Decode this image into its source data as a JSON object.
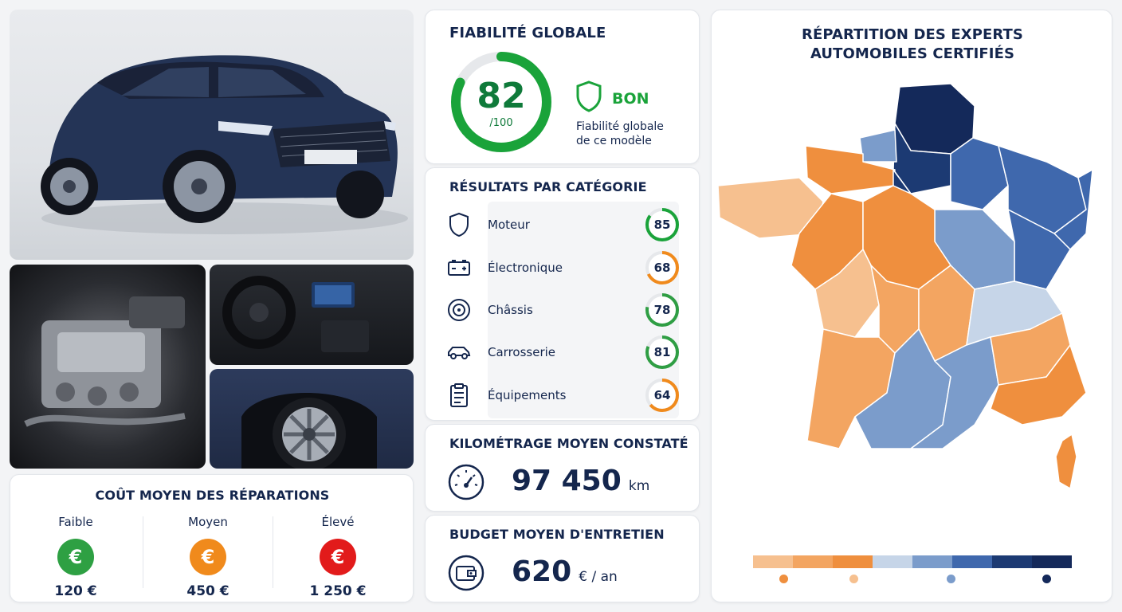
{
  "reliability": {
    "title": "FIABILITÉ GLOBALE",
    "score": "82",
    "score_max": "/100",
    "score_fraction": 0.82,
    "rating": "BON",
    "caption_line1": "Fiabilité globale",
    "caption_line2": "de ce modèle"
  },
  "categories": {
    "title": "RÉSULTATS PAR CATÉGORIE",
    "items": [
      {
        "label": "Moteur",
        "score": "85",
        "value": 85,
        "color": "#1aa33a",
        "icon": "shield-icon"
      },
      {
        "label": "Électronique",
        "score": "68",
        "value": 68,
        "color": "#f08a1c",
        "icon": "battery-icon"
      },
      {
        "label": "Châssis",
        "score": "78",
        "value": 78,
        "color": "#2f9e44",
        "icon": "wheel-icon"
      },
      {
        "label": "Carrosserie",
        "score": "81",
        "value": 81,
        "color": "#2f9e44",
        "icon": "car-icon"
      },
      {
        "label": "Équipements",
        "score": "64",
        "value": 64,
        "color": "#f08a1c",
        "icon": "clipboard-icon"
      }
    ]
  },
  "mileage": {
    "title": "KILOMÉTRAGE MOYEN CONSTATÉ",
    "value": "97 450",
    "unit": "km",
    "icon": "speedometer-icon"
  },
  "budget": {
    "title": "BUDGET MOYEN D'ENTRETIEN",
    "value": "620",
    "unit": "€ / an",
    "icon": "wallet-icon"
  },
  "repair_cost": {
    "title": "COÛT MOYEN DES RÉPARATIONS",
    "levels": [
      {
        "label": "Faible",
        "value": "120 €",
        "color": "#2ea043",
        "icon": "euro-icon"
      },
      {
        "label": "Moyen",
        "value": "450 €",
        "color": "#f08a1c",
        "icon": "euro-icon"
      },
      {
        "label": "Élevé",
        "value": "1 250 €",
        "color": "#e21b1b",
        "icon": "euro-icon"
      }
    ]
  },
  "map": {
    "title_line1": "RÉPARTITION DES EXPERTS",
    "title_line2": "AUTOMOBILES CERTIFIÉS",
    "legend_colors": [
      "#f6c08f",
      "#f3a561",
      "#ef8f3e",
      "#c6d5e8",
      "#7b9ccb",
      "#3f68ad",
      "#1c3a73",
      "#14295a"
    ]
  },
  "colors": {
    "navy": "#14264d",
    "green": "#1aa33a",
    "orange": "#f08a1c",
    "red": "#e21b1b"
  }
}
